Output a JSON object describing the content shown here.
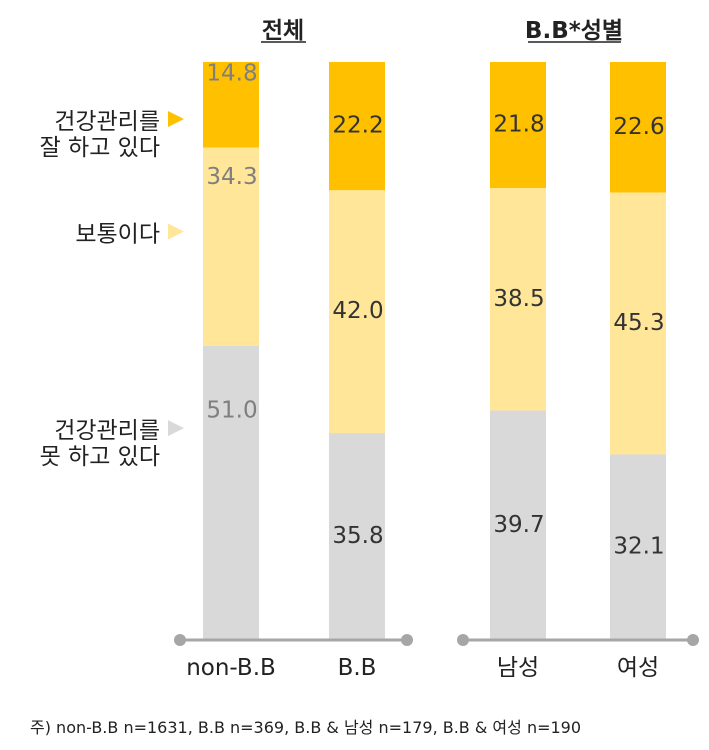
{
  "chart_data": {
    "type": "bar",
    "stacked": true,
    "groups": [
      {
        "title": "전체",
        "categories": [
          "non-B.B",
          "B.B"
        ]
      },
      {
        "title": "B.B*성별",
        "categories": [
          "남성",
          "여성"
        ]
      }
    ],
    "categories": [
      "non-B.B",
      "B.B",
      "남성",
      "여성"
    ],
    "series": [
      {
        "name": "건강관리를 잘 하고 있다",
        "name_lines": [
          "건강관리를",
          "잘 하고 있다"
        ],
        "color": "#FFC000",
        "values": [
          14.8,
          22.2,
          21.8,
          22.6
        ]
      },
      {
        "name": "보통이다",
        "name_lines": [
          "보통이다"
        ],
        "color": "#FFE699",
        "values": [
          34.3,
          42.0,
          38.5,
          45.3
        ]
      },
      {
        "name": "건강관리를 못 하고 있다",
        "name_lines": [
          "건강관리를",
          "못 하고 있다"
        ],
        "color": "#D9D9D9",
        "values": [
          51.0,
          35.8,
          39.7,
          32.1
        ]
      }
    ],
    "value_labels": [
      [
        "14.8",
        "22.2",
        "21.8",
        "22.6"
      ],
      [
        "34.3",
        "42.0",
        "38.5",
        "45.3"
      ],
      [
        "51.0",
        "35.8",
        "39.7",
        "32.1"
      ]
    ],
    "label_colors": {
      "muted": "#7F7F7F",
      "strong": "#333333"
    },
    "axis_color": "#A6A6A6",
    "ylim": [
      0,
      100
    ],
    "note": "주) non-B.B n=1631, B.B n=369, B.B & 남성 n=179, B.B & 여성 n=190"
  }
}
